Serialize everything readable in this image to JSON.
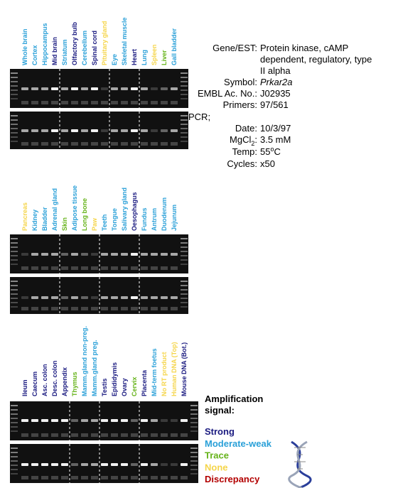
{
  "panels": [
    {
      "lanes": [
        {
          "label": "Whole brain",
          "color": "#2aa0d8"
        },
        {
          "label": "Cortex",
          "color": "#2aa0d8"
        },
        {
          "label": "Hippocampus",
          "color": "#2aa0d8"
        },
        {
          "label": "Mid brain",
          "color": "#1a1a80"
        },
        {
          "label": "Striatum",
          "color": "#2aa0d8"
        },
        {
          "label": "Olfactory bulb",
          "color": "#1a1a80"
        },
        {
          "label": "Cerebellum",
          "color": "#2aa0d8"
        },
        {
          "label": "Spinal cord",
          "color": "#1a1a80"
        },
        {
          "label": "Pituitary gland",
          "color": "#f5d54a"
        },
        {
          "label": "Eye",
          "color": "#2aa0d8"
        },
        {
          "label": "Skeletal muscle",
          "color": "#2aa0d8"
        },
        {
          "label": "Heart",
          "color": "#1a1a80"
        },
        {
          "label": "Lung",
          "color": "#2aa0d8"
        },
        {
          "label": "Spleen",
          "color": "#f5d54a"
        },
        {
          "label": "Liver",
          "color": "#66b31a"
        },
        {
          "label": "Gall bladder",
          "color": "#2aa0d8"
        }
      ]
    },
    {
      "lanes": [
        {
          "label": "Pancreas",
          "color": "#f5d54a"
        },
        {
          "label": "Kidney",
          "color": "#2aa0d8"
        },
        {
          "label": "Bladder",
          "color": "#2aa0d8"
        },
        {
          "label": "Adrenal gland",
          "color": "#2aa0d8"
        },
        {
          "label": "Skin",
          "color": "#66b31a"
        },
        {
          "label": "Adipose tissue",
          "color": "#2aa0d8"
        },
        {
          "label": "Long bone",
          "color": "#66b31a"
        },
        {
          "label": "Paw",
          "color": "#f5d54a"
        },
        {
          "label": "Teeth",
          "color": "#2aa0d8"
        },
        {
          "label": "Tongue",
          "color": "#2aa0d8"
        },
        {
          "label": "Salivary gland",
          "color": "#2aa0d8"
        },
        {
          "label": "Oesophagus",
          "color": "#1a1a80"
        },
        {
          "label": "Fundus",
          "color": "#2aa0d8"
        },
        {
          "label": "Antrum",
          "color": "#2aa0d8"
        },
        {
          "label": "Duodenum",
          "color": "#2aa0d8"
        },
        {
          "label": "Jejunum",
          "color": "#2aa0d8"
        }
      ]
    },
    {
      "lanes": [
        {
          "label": "Ileum",
          "color": "#1a1a80"
        },
        {
          "label": "Caecum",
          "color": "#1a1a80"
        },
        {
          "label": "Asc. colon",
          "color": "#1a1a80"
        },
        {
          "label": "Desc. colon",
          "color": "#1a1a80"
        },
        {
          "label": "Appendix",
          "color": "#1a1a80"
        },
        {
          "label": "Thymus",
          "color": "#66b31a"
        },
        {
          "label": "Mamm.gland non-preg.",
          "color": "#2aa0d8"
        },
        {
          "label": "Mamm.gland preg.",
          "color": "#2aa0d8"
        },
        {
          "label": "Testis",
          "color": "#1a1a80"
        },
        {
          "label": "Epididymis",
          "color": "#1a1a80"
        },
        {
          "label": "Ovary",
          "color": "#1a1a80"
        },
        {
          "label": "Cervix",
          "color": "#66b31a"
        },
        {
          "label": "Placenta",
          "color": "#1a1a80"
        },
        {
          "label": "Mid-term foetus",
          "color": "#2aa0d8"
        },
        {
          "label": "No RT product",
          "color": "#f5d54a"
        },
        {
          "label": "Human DNA (Top)",
          "color": "#f5d54a"
        },
        {
          "label": "Mouse DNA (Bot.)",
          "color": "#1a1a80"
        }
      ]
    }
  ],
  "info": {
    "gene": {
      "key": "Gene/EST:",
      "lines": [
        "Protein kinase, cAMP",
        "dependent, regulatory, type",
        "II alpha"
      ]
    },
    "symbol": {
      "key": "Symbol:",
      "value": "Prkar2a"
    },
    "embl": {
      "key": "EMBL Ac. No.:",
      "value": "J02935"
    },
    "primers": {
      "key": "Primers:",
      "value": "97/561"
    },
    "pcr": "PCR;",
    "date": {
      "key": "Date:",
      "value": "10/3/97"
    },
    "mgcl2": {
      "key": "MgCl",
      "key_sub": "2",
      "key_end": ":",
      "value": "3.5 mM"
    },
    "temp": {
      "key": "Temp:",
      "value": "55",
      "value_sup": "o",
      "value_end": "C"
    },
    "cycles": {
      "key": "Cycles:",
      "value": "x50"
    }
  },
  "legend": {
    "title": [
      "Amplification",
      "signal:"
    ],
    "items": [
      {
        "label": "Strong",
        "color": "#1a1a80"
      },
      {
        "label": "Moderate-weak",
        "color": "#2aa0d8"
      },
      {
        "label": "Trace",
        "color": "#66b31a"
      },
      {
        "label": "None",
        "color": "#f5d54a"
      },
      {
        "label": "Discrepancy",
        "color": "#b30000"
      }
    ]
  }
}
